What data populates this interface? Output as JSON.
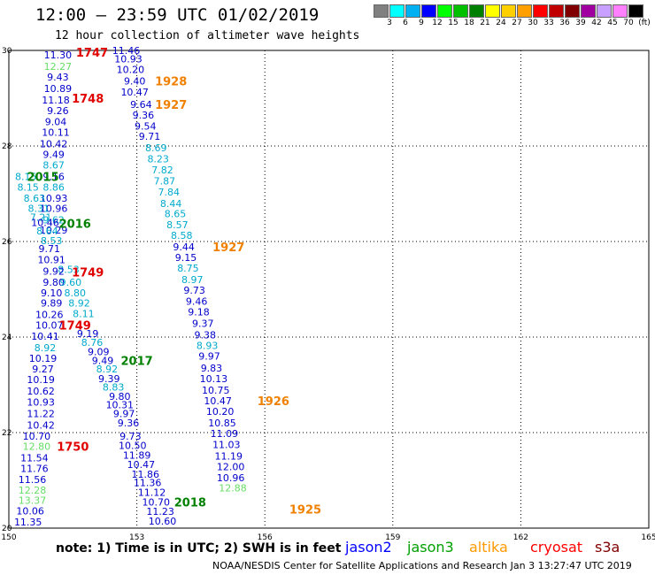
{
  "header": {
    "title": "12:00  —  23:59 UTC 01/02/2019",
    "subtitle": "12 hour collection of altimeter wave heights"
  },
  "legend": {
    "unit": "(ft)",
    "colors": [
      "#808080",
      "#00ffff",
      "#00b0f0",
      "#0000ff",
      "#00ff00",
      "#00c000",
      "#008000",
      "#ffff00",
      "#ffd000",
      "#ffa000",
      "#ff0000",
      "#c00000",
      "#800000",
      "#a000a0",
      "#c8a0ff",
      "#ff80ff",
      "#000000"
    ],
    "labels": [
      "3",
      "6",
      "9",
      "12",
      "15",
      "18",
      "21",
      "24",
      "27",
      "30",
      "33",
      "36",
      "39",
      "42",
      "45",
      "70"
    ]
  },
  "axes": {
    "lon_ticks": [
      "150",
      "153",
      "156",
      "159",
      "162",
      "165"
    ],
    "lat_ticks": [
      "30",
      "28",
      "26",
      "24",
      "22",
      "20"
    ]
  },
  "observations": [
    {
      "t": "11.30",
      "c": "#0000cc",
      "lon": 151.15,
      "lat": 29.91
    },
    {
      "t": "12.27",
      "c": "#66dd66",
      "lon": 151.15,
      "lat": 29.67
    },
    {
      "t": "9.43",
      "c": "#0000cc",
      "lon": 151.15,
      "lat": 29.44
    },
    {
      "t": "10.89",
      "c": "#0000cc",
      "lon": 151.15,
      "lat": 29.2
    },
    {
      "t": "11.18",
      "c": "#0000cc",
      "lon": 151.1,
      "lat": 28.96
    },
    {
      "t": "9.26",
      "c": "#0000cc",
      "lon": 151.15,
      "lat": 28.74
    },
    {
      "t": "9.04",
      "c": "#0000cc",
      "lon": 151.1,
      "lat": 28.51
    },
    {
      "t": "10.11",
      "c": "#0000cc",
      "lon": 151.1,
      "lat": 28.29
    },
    {
      "t": "10.42",
      "c": "#0000cc",
      "lon": 151.05,
      "lat": 28.05
    },
    {
      "t": "9.49",
      "c": "#0000cc",
      "lon": 151.05,
      "lat": 27.82
    },
    {
      "t": "8.67",
      "c": "#00aacc",
      "lon": 151.05,
      "lat": 27.6
    },
    {
      "t": "9.16",
      "c": "#0000cc",
      "lon": 151.05,
      "lat": 27.36
    },
    {
      "t": "8.86",
      "c": "#00aacc",
      "lon": 151.05,
      "lat": 27.14
    },
    {
      "t": "10.93",
      "c": "#0000cc",
      "lon": 151.05,
      "lat": 26.91
    },
    {
      "t": "10.96",
      "c": "#0000cc",
      "lon": 151.05,
      "lat": 26.69
    },
    {
      "t": "9.62",
      "c": "#00aacc",
      "lon": 151.05,
      "lat": 26.45
    },
    {
      "t": "10.29",
      "c": "#0000cc",
      "lon": 151.05,
      "lat": 26.24
    },
    {
      "t": "8.15",
      "c": "#00aacc",
      "lon": 150.4,
      "lat": 27.36
    },
    {
      "t": "8.15",
      "c": "#00aacc",
      "lon": 150.45,
      "lat": 27.14
    },
    {
      "t": "8.63",
      "c": "#00aacc",
      "lon": 150.6,
      "lat": 26.91
    },
    {
      "t": "8.31",
      "c": "#00aacc",
      "lon": 150.7,
      "lat": 26.69
    },
    {
      "t": "7.21",
      "c": "#00aacc",
      "lon": 150.75,
      "lat": 26.51
    },
    {
      "t": "10.46",
      "c": "#0000cc",
      "lon": 150.85,
      "lat": 26.4
    },
    {
      "t": "8.64",
      "c": "#00aacc",
      "lon": 150.9,
      "lat": 26.22
    },
    {
      "t": "8.53",
      "c": "#00aacc",
      "lon": 151.0,
      "lat": 26.02
    },
    {
      "t": "9.71",
      "c": "#0000cc",
      "lon": 150.95,
      "lat": 25.85
    },
    {
      "t": "10.91",
      "c": "#0000cc",
      "lon": 151.0,
      "lat": 25.62
    },
    {
      "t": "8.53",
      "c": "#00aacc",
      "lon": 151.4,
      "lat": 25.42
    },
    {
      "t": "9.92",
      "c": "#0000cc",
      "lon": 151.05,
      "lat": 25.38
    },
    {
      "t": "9.80",
      "c": "#0000cc",
      "lon": 151.05,
      "lat": 25.15
    },
    {
      "t": "9.60",
      "c": "#00aacc",
      "lon": 151.45,
      "lat": 25.15
    },
    {
      "t": "8.80",
      "c": "#00aacc",
      "lon": 151.55,
      "lat": 24.93
    },
    {
      "t": "9.10",
      "c": "#0000cc",
      "lon": 151.0,
      "lat": 24.93
    },
    {
      "t": "9.89",
      "c": "#0000cc",
      "lon": 151.0,
      "lat": 24.71
    },
    {
      "t": "8.92",
      "c": "#00aacc",
      "lon": 151.65,
      "lat": 24.71
    },
    {
      "t": "10.26",
      "c": "#0000cc",
      "lon": 150.95,
      "lat": 24.47
    },
    {
      "t": "8.11",
      "c": "#00aacc",
      "lon": 151.75,
      "lat": 24.49
    },
    {
      "t": "10.07",
      "c": "#0000cc",
      "lon": 150.95,
      "lat": 24.25
    },
    {
      "t": "9.19",
      "c": "#0000cc",
      "lon": 151.85,
      "lat": 24.07
    },
    {
      "t": "10.41",
      "c": "#0000cc",
      "lon": 150.85,
      "lat": 24.02
    },
    {
      "t": "8.76",
      "c": "#00aacc",
      "lon": 151.95,
      "lat": 23.89
    },
    {
      "t": "8.92",
      "c": "#00aacc",
      "lon": 150.85,
      "lat": 23.78
    },
    {
      "t": "9.09",
      "c": "#0000cc",
      "lon": 152.1,
      "lat": 23.69
    },
    {
      "t": "10.19",
      "c": "#0000cc",
      "lon": 150.8,
      "lat": 23.56
    },
    {
      "t": "9.49",
      "c": "#0000cc",
      "lon": 152.2,
      "lat": 23.51
    },
    {
      "t": "9.27",
      "c": "#0000cc",
      "lon": 150.8,
      "lat": 23.33
    },
    {
      "t": "8.92",
      "c": "#00aacc",
      "lon": 152.3,
      "lat": 23.33
    },
    {
      "t": "10.19",
      "c": "#0000cc",
      "lon": 150.75,
      "lat": 23.11
    },
    {
      "t": "9.39",
      "c": "#0000cc",
      "lon": 152.35,
      "lat": 23.13
    },
    {
      "t": "8.83",
      "c": "#00aacc",
      "lon": 152.45,
      "lat": 22.95
    },
    {
      "t": "10.62",
      "c": "#0000cc",
      "lon": 150.75,
      "lat": 22.87
    },
    {
      "t": "9.80",
      "c": "#0000cc",
      "lon": 152.6,
      "lat": 22.76
    },
    {
      "t": "10.93",
      "c": "#0000cc",
      "lon": 150.75,
      "lat": 22.64
    },
    {
      "t": "10.31",
      "c": "#0000cc",
      "lon": 152.6,
      "lat": 22.58
    },
    {
      "t": "11.22",
      "c": "#0000cc",
      "lon": 150.75,
      "lat": 22.4
    },
    {
      "t": "9.97",
      "c": "#0000cc",
      "lon": 152.7,
      "lat": 22.4
    },
    {
      "t": "10.42",
      "c": "#0000cc",
      "lon": 150.75,
      "lat": 22.16
    },
    {
      "t": "9.36",
      "c": "#0000cc",
      "lon": 152.8,
      "lat": 22.2
    },
    {
      "t": "10.70",
      "c": "#0000cc",
      "lon": 150.65,
      "lat": 21.93
    },
    {
      "t": "9.73",
      "c": "#0000cc",
      "lon": 152.85,
      "lat": 21.93
    },
    {
      "t": "12.80",
      "c": "#66dd66",
      "lon": 150.65,
      "lat": 21.71
    },
    {
      "t": "10.50",
      "c": "#0000cc",
      "lon": 152.9,
      "lat": 21.73
    },
    {
      "t": "11.54",
      "c": "#0000cc",
      "lon": 150.6,
      "lat": 21.47
    },
    {
      "t": "11.89",
      "c": "#0000cc",
      "lon": 153.0,
      "lat": 21.53
    },
    {
      "t": "10.47",
      "c": "#0000cc",
      "lon": 153.1,
      "lat": 21.33
    },
    {
      "t": "11.76",
      "c": "#0000cc",
      "lon": 150.6,
      "lat": 21.25
    },
    {
      "t": "11.86",
      "c": "#0000cc",
      "lon": 153.2,
      "lat": 21.13
    },
    {
      "t": "11.56",
      "c": "#0000cc",
      "lon": 150.55,
      "lat": 21.02
    },
    {
      "t": "11.36",
      "c": "#0000cc",
      "lon": 153.25,
      "lat": 20.95
    },
    {
      "t": "12.28",
      "c": "#66dd66",
      "lon": 150.55,
      "lat": 20.8
    },
    {
      "t": "11.12",
      "c": "#0000cc",
      "lon": 153.35,
      "lat": 20.75
    },
    {
      "t": "13.37",
      "c": "#66dd66",
      "lon": 150.55,
      "lat": 20.58
    },
    {
      "t": "10.70",
      "c": "#0000cc",
      "lon": 153.45,
      "lat": 20.55
    },
    {
      "t": "10.06",
      "c": "#0000cc",
      "lon": 150.5,
      "lat": 20.36
    },
    {
      "t": "11.23",
      "c": "#0000cc",
      "lon": 153.55,
      "lat": 20.35
    },
    {
      "t": "11.35",
      "c": "#0000cc",
      "lon": 150.45,
      "lat": 20.13
    },
    {
      "t": "10.60",
      "c": "#0000cc",
      "lon": 153.6,
      "lat": 20.15
    },
    {
      "t": "11.46",
      "c": "#0000cc",
      "lon": 152.75,
      "lat": 30.0
    },
    {
      "t": "10.93",
      "c": "#0000cc",
      "lon": 152.8,
      "lat": 29.82
    },
    {
      "t": "10.20",
      "c": "#0000cc",
      "lon": 152.85,
      "lat": 29.6
    },
    {
      "t": "9.40",
      "c": "#0000cc",
      "lon": 152.95,
      "lat": 29.36
    },
    {
      "t": "10.47",
      "c": "#0000cc",
      "lon": 152.95,
      "lat": 29.13
    },
    {
      "t": "9.64",
      "c": "#0000cc",
      "lon": 153.1,
      "lat": 28.87
    },
    {
      "t": "9.36",
      "c": "#0000cc",
      "lon": 153.15,
      "lat": 28.65
    },
    {
      "t": "9.54",
      "c": "#0000cc",
      "lon": 153.2,
      "lat": 28.42
    },
    {
      "t": "9.71",
      "c": "#0000cc",
      "lon": 153.3,
      "lat": 28.2
    },
    {
      "t": "8.69",
      "c": "#00aacc",
      "lon": 153.45,
      "lat": 27.96
    },
    {
      "t": "8.23",
      "c": "#00aacc",
      "lon": 153.5,
      "lat": 27.73
    },
    {
      "t": "7.82",
      "c": "#00aacc",
      "lon": 153.6,
      "lat": 27.5
    },
    {
      "t": "7.87",
      "c": "#00aacc",
      "lon": 153.65,
      "lat": 27.27
    },
    {
      "t": "7.84",
      "c": "#00aacc",
      "lon": 153.75,
      "lat": 27.04
    },
    {
      "t": "8.44",
      "c": "#00aacc",
      "lon": 153.8,
      "lat": 26.8
    },
    {
      "t": "8.65",
      "c": "#00aacc",
      "lon": 153.9,
      "lat": 26.58
    },
    {
      "t": "8.57",
      "c": "#00aacc",
      "lon": 153.95,
      "lat": 26.35
    },
    {
      "t": "8.58",
      "c": "#00aacc",
      "lon": 154.05,
      "lat": 26.13
    },
    {
      "t": "9.44",
      "c": "#0000cc",
      "lon": 154.1,
      "lat": 25.89
    },
    {
      "t": "9.15",
      "c": "#0000cc",
      "lon": 154.15,
      "lat": 25.67
    },
    {
      "t": "8.75",
      "c": "#00aacc",
      "lon": 154.2,
      "lat": 25.44
    },
    {
      "t": "8.97",
      "c": "#00aacc",
      "lon": 154.3,
      "lat": 25.2
    },
    {
      "t": "9.73",
      "c": "#0000cc",
      "lon": 154.35,
      "lat": 24.98
    },
    {
      "t": "9.46",
      "c": "#0000cc",
      "lon": 154.4,
      "lat": 24.75
    },
    {
      "t": "9.18",
      "c": "#0000cc",
      "lon": 154.45,
      "lat": 24.53
    },
    {
      "t": "9.37",
      "c": "#0000cc",
      "lon": 154.55,
      "lat": 24.29
    },
    {
      "t": "9.38",
      "c": "#0000cc",
      "lon": 154.6,
      "lat": 24.05
    },
    {
      "t": "8.93",
      "c": "#00aacc",
      "lon": 154.65,
      "lat": 23.82
    },
    {
      "t": "9.97",
      "c": "#0000cc",
      "lon": 154.7,
      "lat": 23.6
    },
    {
      "t": "9.83",
      "c": "#0000cc",
      "lon": 154.75,
      "lat": 23.35
    },
    {
      "t": "10.13",
      "c": "#0000cc",
      "lon": 154.8,
      "lat": 23.13
    },
    {
      "t": "10.75",
      "c": "#0000cc",
      "lon": 154.85,
      "lat": 22.89
    },
    {
      "t": "10.47",
      "c": "#0000cc",
      "lon": 154.9,
      "lat": 22.67
    },
    {
      "t": "10.20",
      "c": "#0000cc",
      "lon": 154.95,
      "lat": 22.44
    },
    {
      "t": "10.85",
      "c": "#0000cc",
      "lon": 155.0,
      "lat": 22.2
    },
    {
      "t": "11.09",
      "c": "#0000cc",
      "lon": 155.05,
      "lat": 21.98
    },
    {
      "t": "11.03",
      "c": "#0000cc",
      "lon": 155.1,
      "lat": 21.75
    },
    {
      "t": "11.19",
      "c": "#0000cc",
      "lon": 155.15,
      "lat": 21.51
    },
    {
      "t": "12.00",
      "c": "#0000cc",
      "lon": 155.2,
      "lat": 21.29
    },
    {
      "t": "10.96",
      "c": "#0000cc",
      "lon": 155.2,
      "lat": 21.06
    },
    {
      "t": "12.88",
      "c": "#66dd66",
      "lon": 155.25,
      "lat": 20.84
    }
  ],
  "passes": [
    {
      "t": "1747",
      "c": "#e00000",
      "lon": 151.95,
      "lat": 29.96
    },
    {
      "t": "1928",
      "c": "#f08000",
      "lon": 153.8,
      "lat": 29.36
    },
    {
      "t": "1748",
      "c": "#e00000",
      "lon": 151.85,
      "lat": 29.0
    },
    {
      "t": "1927",
      "c": "#f08000",
      "lon": 153.8,
      "lat": 28.87
    },
    {
      "t": "2015",
      "c": "#008000",
      "lon": 150.8,
      "lat": 27.36
    },
    {
      "t": "2016",
      "c": "#008000",
      "lon": 151.55,
      "lat": 26.38
    },
    {
      "t": "1927",
      "c": "#f08000",
      "lon": 155.15,
      "lat": 25.89
    },
    {
      "t": "1749",
      "c": "#e00000",
      "lon": 151.85,
      "lat": 25.36
    },
    {
      "t": "1749",
      "c": "#e00000",
      "lon": 151.55,
      "lat": 24.25
    },
    {
      "t": "2017",
      "c": "#008000",
      "lon": 153.0,
      "lat": 23.51
    },
    {
      "t": "1926",
      "c": "#f08000",
      "lon": 156.2,
      "lat": 22.67
    },
    {
      "t": "1750",
      "c": "#e00000",
      "lon": 151.5,
      "lat": 21.71
    },
    {
      "t": "2018",
      "c": "#008000",
      "lon": 154.25,
      "lat": 20.55
    },
    {
      "t": "1925",
      "c": "#f08000",
      "lon": 156.95,
      "lat": 20.4
    }
  ],
  "footer": {
    "note": "note:  1) Time is in UTC;  2) SWH is in feet",
    "satellites": [
      {
        "name": "jason2",
        "color": "#0000ff"
      },
      {
        "name": "jason3",
        "color": "#00a000"
      },
      {
        "name": "altika",
        "color": "#ff9900"
      },
      {
        "name": "cryosat",
        "color": "#ff0000"
      },
      {
        "name": "s3a",
        "color": "#800000"
      }
    ],
    "credit": "NOAA/NESDIS Center for Satellite Applications and Research    Jan  3 13:27:47 UTC 2019"
  }
}
